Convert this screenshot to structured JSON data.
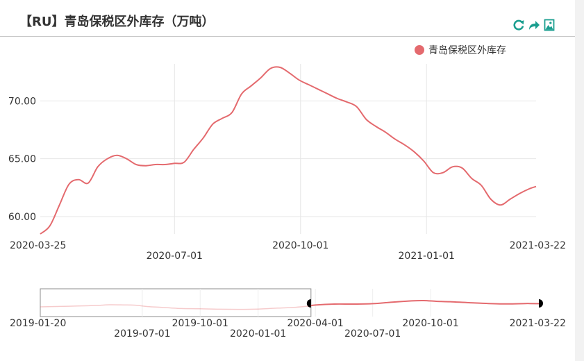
{
  "header": {
    "title": "【RU】青岛保税区外库存（万吨）",
    "icons": [
      "refresh-icon",
      "share-icon",
      "save-image-icon"
    ],
    "icon_color": "#1a9e8f"
  },
  "chart_data": {
    "type": "line",
    "title": "【RU】青岛保税区外库存（万吨）",
    "unit": "万吨",
    "legend": {
      "position": "top-right"
    },
    "grid": true,
    "series": [
      {
        "name": "青岛保税区外库存",
        "color": "#e46a6e",
        "points": [
          [
            "2020-03-25",
            58.5
          ],
          [
            "2020-04-01",
            59.2
          ],
          [
            "2020-04-08",
            61.0
          ],
          [
            "2020-04-15",
            62.8
          ],
          [
            "2020-04-22",
            63.2
          ],
          [
            "2020-04-29",
            62.9
          ],
          [
            "2020-05-06",
            64.3
          ],
          [
            "2020-05-13",
            65.0
          ],
          [
            "2020-05-20",
            65.3
          ],
          [
            "2020-05-27",
            65.0
          ],
          [
            "2020-06-03",
            64.5
          ],
          [
            "2020-06-10",
            64.4
          ],
          [
            "2020-06-17",
            64.5
          ],
          [
            "2020-06-24",
            64.5
          ],
          [
            "2020-07-01",
            64.6
          ],
          [
            "2020-07-08",
            64.7
          ],
          [
            "2020-07-15",
            65.8
          ],
          [
            "2020-07-22",
            66.8
          ],
          [
            "2020-07-29",
            68.0
          ],
          [
            "2020-08-05",
            68.5
          ],
          [
            "2020-08-12",
            69.0
          ],
          [
            "2020-08-19",
            70.6
          ],
          [
            "2020-08-26",
            71.3
          ],
          [
            "2020-09-02",
            72.0
          ],
          [
            "2020-09-09",
            72.8
          ],
          [
            "2020-09-16",
            72.9
          ],
          [
            "2020-09-23",
            72.4
          ],
          [
            "2020-09-30",
            71.8
          ],
          [
            "2020-10-07",
            71.4
          ],
          [
            "2020-10-14",
            71.0
          ],
          [
            "2020-10-21",
            70.6
          ],
          [
            "2020-10-28",
            70.2
          ],
          [
            "2020-11-04",
            69.9
          ],
          [
            "2020-11-11",
            69.5
          ],
          [
            "2020-11-18",
            68.4
          ],
          [
            "2020-11-25",
            67.8
          ],
          [
            "2020-12-02",
            67.3
          ],
          [
            "2020-12-09",
            66.7
          ],
          [
            "2020-12-16",
            66.2
          ],
          [
            "2020-12-23",
            65.6
          ],
          [
            "2020-12-30",
            64.8
          ],
          [
            "2021-01-06",
            63.8
          ],
          [
            "2021-01-13",
            63.8
          ],
          [
            "2021-01-20",
            64.3
          ],
          [
            "2021-01-27",
            64.2
          ],
          [
            "2021-02-03",
            63.3
          ],
          [
            "2021-02-10",
            62.7
          ],
          [
            "2021-02-17",
            61.5
          ],
          [
            "2021-02-24",
            61.0
          ],
          [
            "2021-03-03",
            61.5
          ],
          [
            "2021-03-10",
            62.0
          ],
          [
            "2021-03-17",
            62.4
          ],
          [
            "2021-03-22",
            62.6
          ]
        ]
      }
    ],
    "x_axis": {
      "type": "time",
      "range": [
        "2020-03-25",
        "2021-03-22"
      ],
      "ticks": [
        {
          "date": "2020-03-25",
          "label": "2020-03-25",
          "row": 1
        },
        {
          "date": "2020-07-01",
          "label": "2020-07-01",
          "row": 2
        },
        {
          "date": "2020-10-01",
          "label": "2020-10-01",
          "row": 1
        },
        {
          "date": "2021-01-01",
          "label": "2021-01-01",
          "row": 2
        },
        {
          "date": "2021-03-22",
          "label": "2021-03-22",
          "row": 1
        }
      ]
    },
    "y_axis": {
      "range": [
        58.5,
        73.2
      ],
      "ticks": [
        {
          "value": 60,
          "label": "60.00"
        },
        {
          "value": 65,
          "label": "65.00"
        },
        {
          "value": 70,
          "label": "70.00"
        }
      ]
    },
    "data_zoom": {
      "full_range": [
        "2019-01-20",
        "2021-03-22"
      ],
      "selected_range": [
        "2020-03-25",
        "2021-03-22"
      ],
      "y_range": [
        55,
        75
      ],
      "overview_series": [
        [
          "2019-01-20",
          62.0
        ],
        [
          "2019-02-20",
          62.3
        ],
        [
          "2019-03-20",
          62.6
        ],
        [
          "2019-04-20",
          63.0
        ],
        [
          "2019-05-10",
          63.5
        ],
        [
          "2019-06-01",
          63.4
        ],
        [
          "2019-06-20",
          63.2
        ],
        [
          "2019-07-10",
          62.2
        ],
        [
          "2019-08-01",
          61.6
        ],
        [
          "2019-09-01",
          60.8
        ],
        [
          "2019-10-01",
          60.6
        ],
        [
          "2019-11-01",
          60.3
        ],
        [
          "2019-12-01",
          60.2
        ],
        [
          "2020-01-01",
          60.4
        ],
        [
          "2020-02-01",
          61.1
        ],
        [
          "2020-03-01",
          61.7
        ],
        [
          "2020-03-20",
          62.5
        ],
        [
          "2020-04-01",
          63.3
        ],
        [
          "2020-05-01",
          64.0
        ],
        [
          "2020-06-01",
          64.0
        ],
        [
          "2020-07-01",
          64.3
        ],
        [
          "2020-08-01",
          65.4
        ],
        [
          "2020-09-01",
          66.3
        ],
        [
          "2020-09-20",
          66.5
        ],
        [
          "2020-10-10",
          66.0
        ],
        [
          "2020-11-01",
          65.7
        ],
        [
          "2020-12-01",
          65.0
        ],
        [
          "2021-01-01",
          64.4
        ],
        [
          "2021-02-01",
          64.1
        ],
        [
          "2021-03-01",
          64.4
        ],
        [
          "2021-03-22",
          64.3
        ]
      ],
      "ticks": [
        {
          "date": "2019-01-20",
          "label": "2019-01-20",
          "row": 1
        },
        {
          "date": "2019-07-01",
          "label": "2019-07-01",
          "row": 2
        },
        {
          "date": "2019-10-01",
          "label": "2019-10-01",
          "row": 1
        },
        {
          "date": "2020-01-01",
          "label": "2020-01-01",
          "row": 2
        },
        {
          "date": "2020-04-01",
          "label": "2020-04-01",
          "row": 1
        },
        {
          "date": "2020-07-01",
          "label": "2020-07-01",
          "row": 2
        },
        {
          "date": "2020-10-01",
          "label": "2020-10-01",
          "row": 1
        },
        {
          "date": "2021-03-22",
          "label": "2021-03-22",
          "row": 1
        }
      ]
    }
  }
}
